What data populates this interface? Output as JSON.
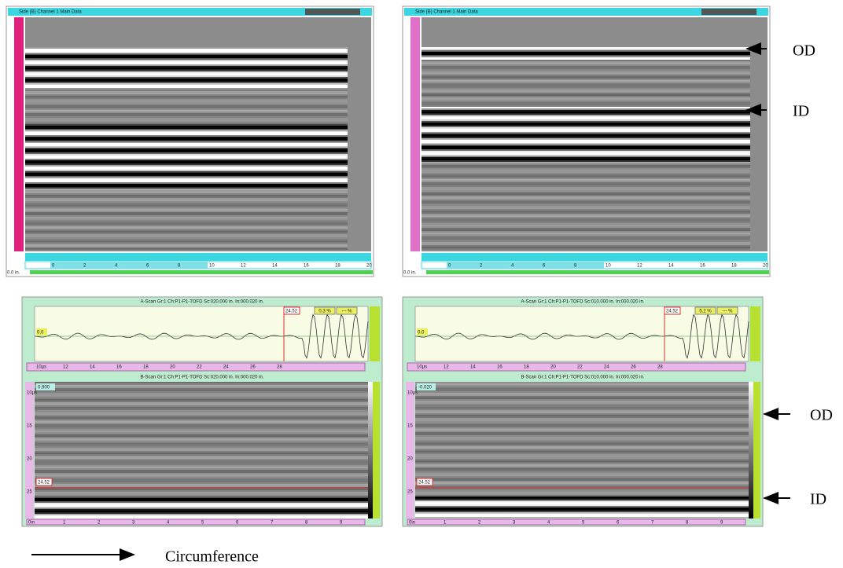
{
  "figure": {
    "top_panels": [
      {
        "title": "Side (B) Channel 1 Main Data",
        "ruler_labels": [
          "0",
          "2",
          "4",
          "6",
          "8",
          "10",
          "12",
          "14",
          "16",
          "18",
          "20"
        ],
        "position_label": "0.0 in."
      },
      {
        "title": "Side (B) Channel 1 Main Data",
        "ruler_labels": [
          "0",
          "2",
          "4",
          "6",
          "8",
          "10",
          "12",
          "14",
          "16",
          "18",
          "20"
        ],
        "position_label": "0.0 in."
      }
    ],
    "bottom_panels": [
      {
        "ascan_title": "A-Scan Gr:1 Ch:P1-P1-TOFD Sc:020.000 in. In:000.020 in.",
        "gate_value": "24.52",
        "amplitude": "0.3 %",
        "amplitude_2": "--- %",
        "baseline": "0.0",
        "ascan_axis": [
          "10µs",
          "12",
          "14",
          "16",
          "18",
          "20",
          "22",
          "24",
          "26",
          "28"
        ],
        "bscan_title": "B-Scan Gr:1 Ch:P1-P1-TOFD Sc:020.000 in. In:000.020 in.",
        "bscan_value": "0.900",
        "bscan_depth_axis": [
          "10µs",
          "15",
          "20",
          "25"
        ],
        "bscan_axis": [
          "0in",
          "1",
          "2",
          "3",
          "4",
          "5",
          "6",
          "7",
          "8",
          "9"
        ]
      },
      {
        "ascan_title": "A-Scan Gr:1 Ch:P1-P1-TOFD Sc:010.000 in. In:000.020 in.",
        "gate_value": "24.52",
        "amplitude": "5.2 %",
        "amplitude_2": "--- %",
        "baseline": "0.0",
        "ascan_axis": [
          "10µs",
          "12",
          "14",
          "16",
          "18",
          "20",
          "22",
          "24",
          "26",
          "28"
        ],
        "bscan_title": "B-Scan Gr:1 Ch:P1-P1-TOFD Sc:010.000 in. In:000.020 in.",
        "bscan_value": "-0.020",
        "bscan_depth_axis": [
          "10µs",
          "15",
          "20",
          "25"
        ],
        "bscan_axis": [
          "0in",
          "1",
          "2",
          "3",
          "4",
          "5",
          "6",
          "7",
          "8",
          "9"
        ]
      }
    ],
    "annotations": {
      "top_od": "OD",
      "top_id": "ID",
      "bottom_od": "OD",
      "bottom_id": "ID",
      "direction": "Circumference"
    }
  }
}
